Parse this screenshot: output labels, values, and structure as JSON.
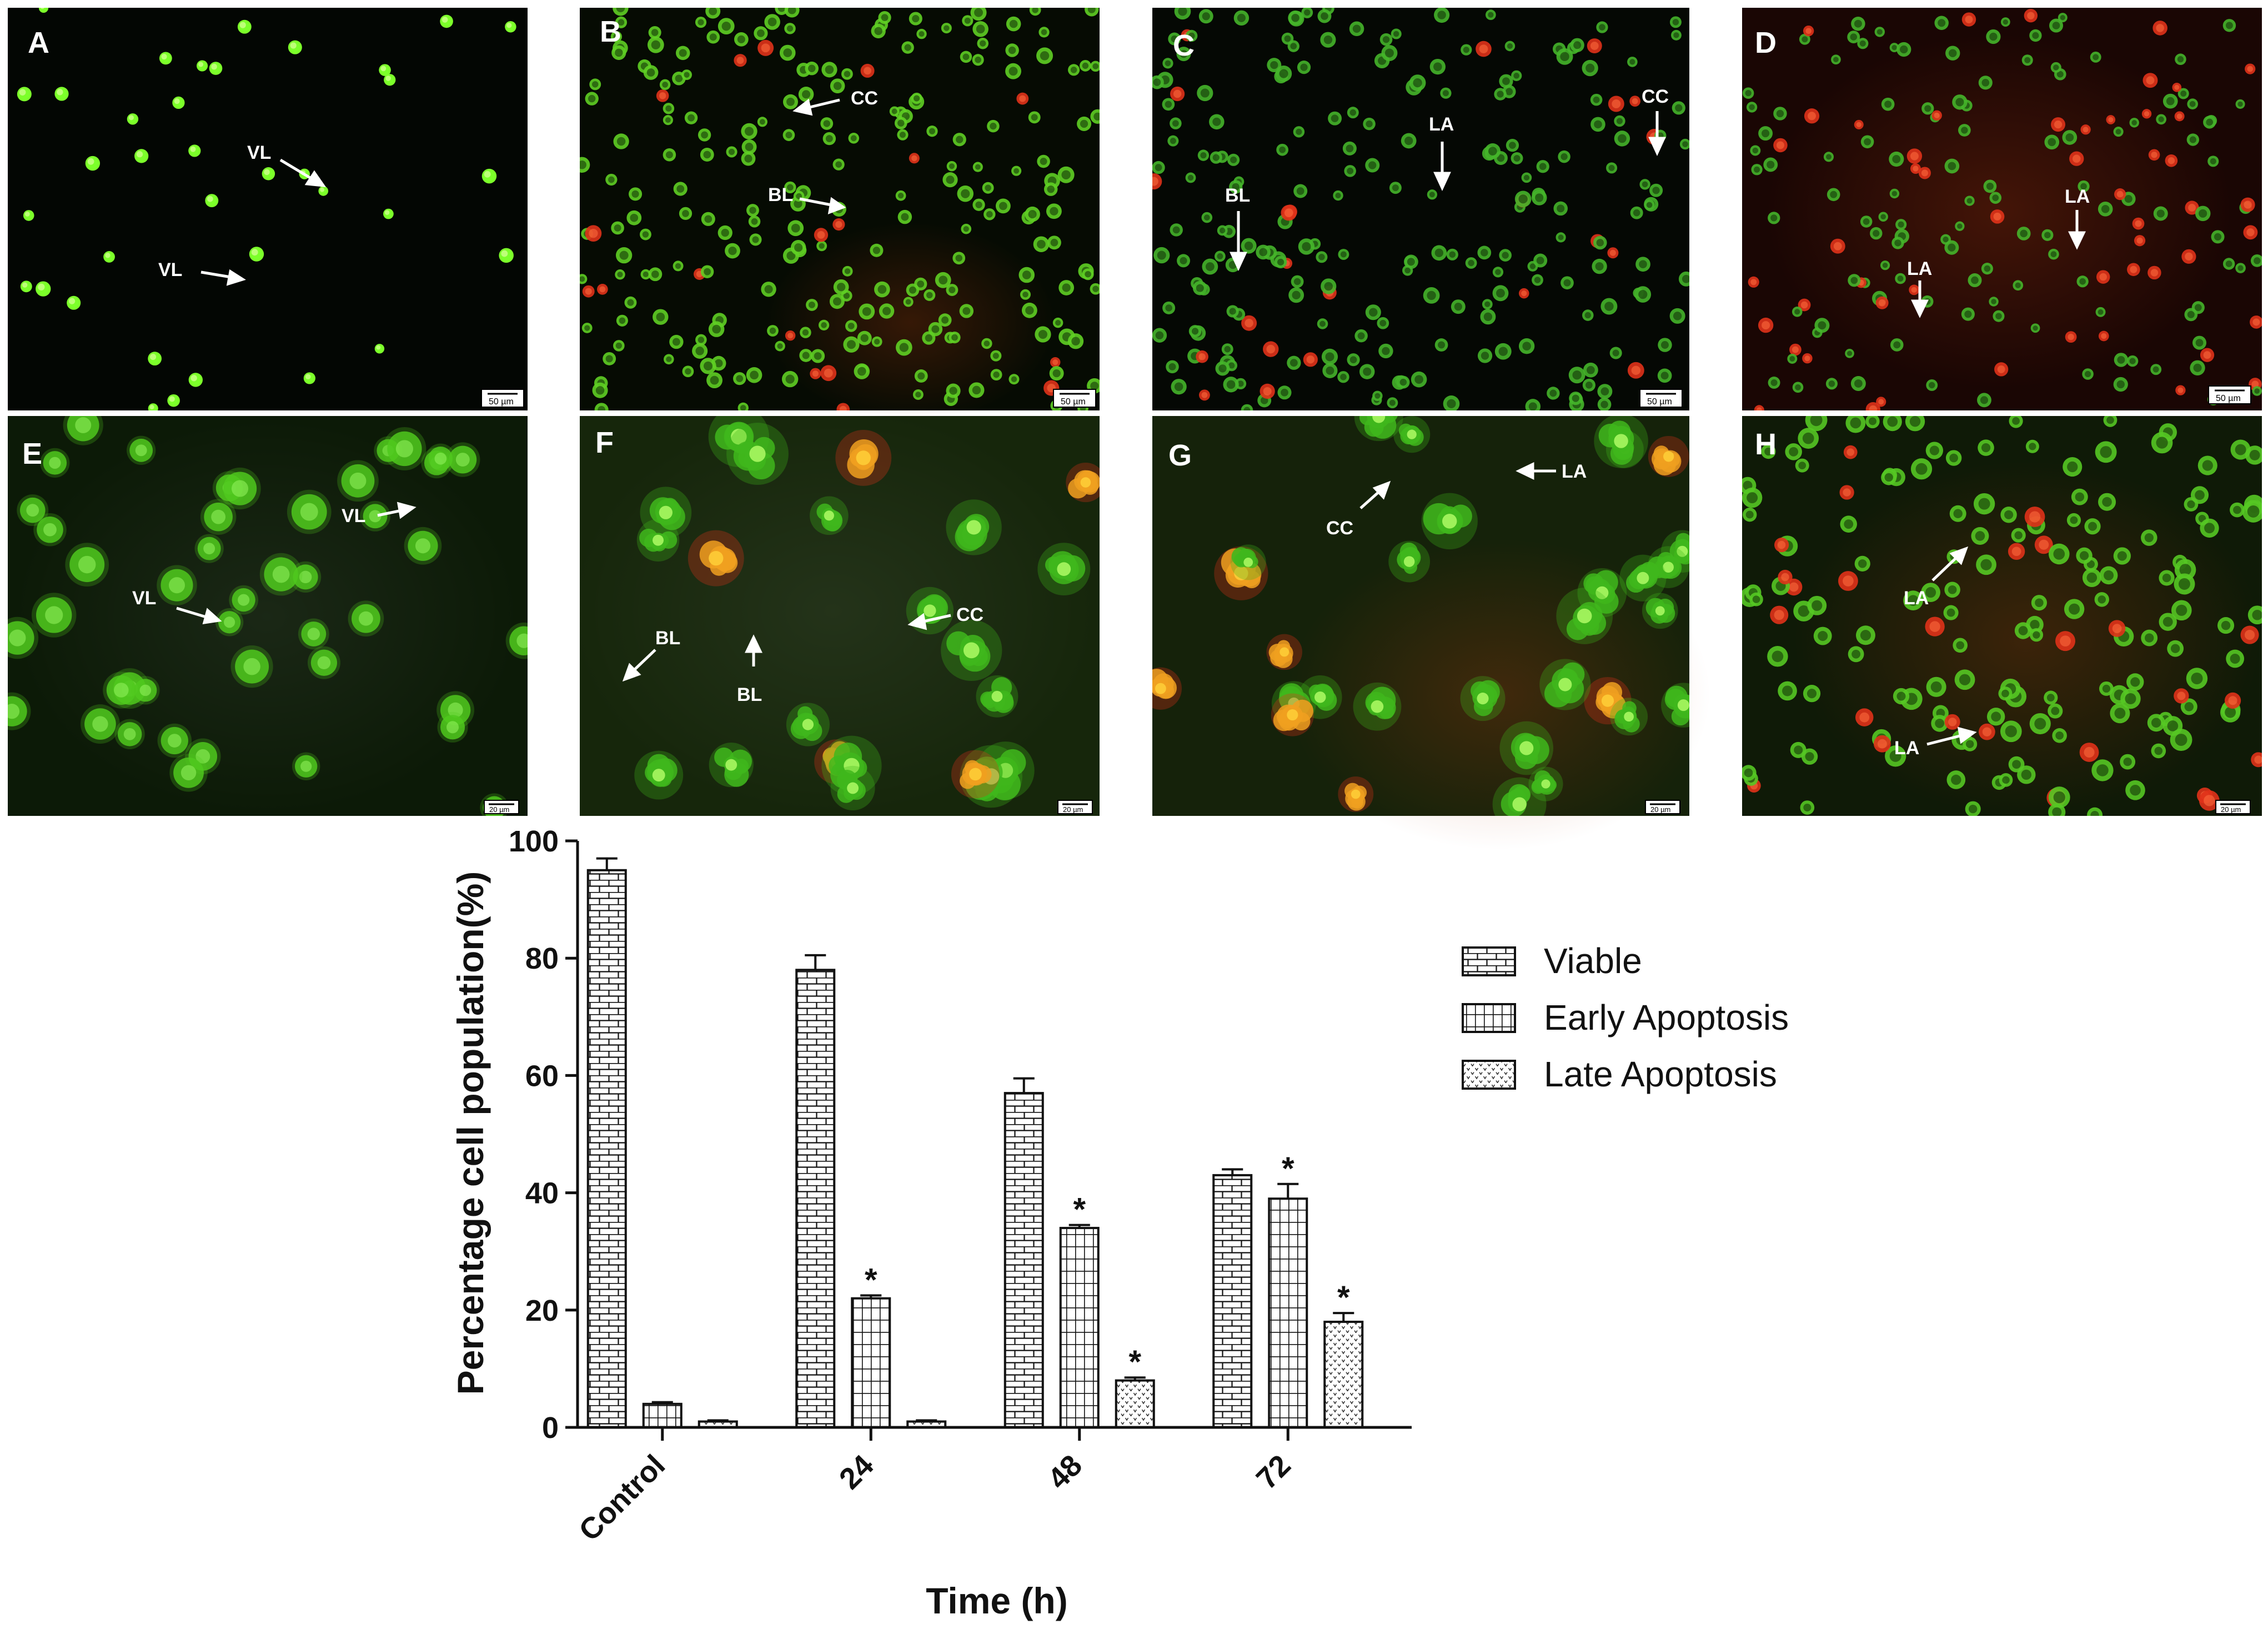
{
  "panels": [
    {
      "letter": "A",
      "scale": "50 µm",
      "bg": "#030603",
      "cells": {
        "count": 36,
        "seed": 11,
        "r": 11,
        "red_fraction": 0.0,
        "green": "#7CFF2A",
        "style": "bright"
      },
      "labels": [
        {
          "text": "VL"
        },
        {
          "text": "VL"
        }
      ]
    },
    {
      "letter": "B",
      "scale": "50 µm",
      "bg": "#060b03",
      "cells": {
        "count": 240,
        "seed": 23,
        "r": 12,
        "red_fraction": 0.05,
        "green": "#5fcf24",
        "style": "ring"
      },
      "labels": [
        {
          "text": "CC"
        },
        {
          "text": "BL"
        }
      ]
    },
    {
      "letter": "C",
      "scale": "50 µm",
      "bg": "#050804",
      "cells": {
        "count": 230,
        "seed": 37,
        "r": 12,
        "red_fraction": 0.12,
        "green": "#45b52a",
        "style": "ring"
      },
      "labels": [
        {
          "text": "LA"
        },
        {
          "text": "CC"
        },
        {
          "text": "BL"
        }
      ]
    },
    {
      "letter": "D",
      "scale": "50 µm",
      "bg": "#1a0604",
      "cells": {
        "count": 170,
        "seed": 41,
        "r": 11,
        "red_fraction": 0.3,
        "green": "#45b52a",
        "style": "ring"
      },
      "labels": [
        {
          "text": "LA"
        },
        {
          "text": "LA"
        }
      ]
    },
    {
      "letter": "E",
      "scale": "20 µm",
      "bg": "#0c1a07",
      "cells": {
        "count": 44,
        "seed": 53,
        "r": 26,
        "red_fraction": 0.0,
        "green": "#4fc81d",
        "style": "soft"
      },
      "labels": [
        {
          "text": "VL"
        },
        {
          "text": "VL"
        }
      ]
    },
    {
      "letter": "F",
      "scale": "20 µm",
      "bg": "#16260b",
      "cells": {
        "count": 22,
        "seed": 67,
        "r": 40,
        "red_fraction": 0.15,
        "green": "#3fb71c",
        "style": "bleb"
      },
      "labels": [
        {
          "text": "CC"
        },
        {
          "text": "BL"
        },
        {
          "text": "BL"
        }
      ]
    },
    {
      "letter": "G",
      "scale": "20 µm",
      "bg": "#15220a",
      "cells": {
        "count": 30,
        "seed": 71,
        "r": 36,
        "red_fraction": 0.18,
        "green": "#3fb71c",
        "style": "bleb"
      },
      "labels": [
        {
          "text": "LA"
        },
        {
          "text": "CC"
        }
      ]
    },
    {
      "letter": "H",
      "scale": "20 µm",
      "bg": "#0f1a07",
      "cells": {
        "count": 170,
        "seed": 83,
        "r": 16,
        "red_fraction": 0.12,
        "green": "#55c824",
        "style": "ring"
      },
      "labels": [
        {
          "text": "LA"
        },
        {
          "text": "LA"
        }
      ]
    }
  ],
  "chart_data": {
    "type": "bar",
    "categories": [
      "Control",
      "24",
      "48",
      "72"
    ],
    "series": [
      {
        "name": "Viable",
        "pattern": "brick",
        "values": [
          95,
          78,
          57,
          43
        ],
        "errors": [
          2,
          2.5,
          2.5,
          1
        ],
        "significant": [
          false,
          false,
          false,
          false
        ]
      },
      {
        "name": "Early Apoptosis",
        "pattern": "grid",
        "values": [
          4,
          22,
          34,
          39
        ],
        "errors": [
          0.3,
          0.5,
          0.5,
          2.5
        ],
        "significant": [
          false,
          true,
          true,
          true
        ]
      },
      {
        "name": "Late Apoptosis",
        "pattern": "dots",
        "values": [
          1,
          1,
          8,
          18
        ],
        "errors": [
          0.2,
          0.2,
          0.5,
          1.5
        ],
        "significant": [
          false,
          false,
          true,
          true
        ]
      }
    ],
    "significance_marker": "*",
    "xlabel": "Time (h)",
    "ylabel": "Percentage cell population(%)",
    "ylim": [
      0,
      100
    ],
    "yticks": [
      0,
      20,
      40,
      60,
      80,
      100
    ],
    "legend_position": "right"
  }
}
